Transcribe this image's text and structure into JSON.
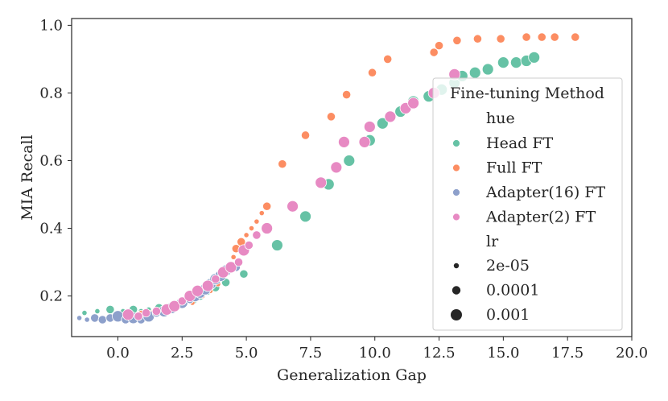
{
  "chart_data": {
    "type": "scatter",
    "title": "",
    "xlabel": "Generalization Gap",
    "ylabel": "MIA Recall",
    "xlim": [
      -1.8,
      20.0
    ],
    "ylim": [
      0.08,
      1.02
    ],
    "xticks": [
      0.0,
      2.5,
      5.0,
      7.5,
      10.0,
      12.5,
      15.0,
      17.5,
      20.0
    ],
    "xtick_labels": [
      "0.0",
      "2.5",
      "5.0",
      "7.5",
      "10.0",
      "12.5",
      "15.0",
      "17.5",
      "20.0"
    ],
    "yticks": [
      0.2,
      0.4,
      0.6,
      0.8,
      1.0
    ],
    "ytick_labels": [
      "0.2",
      "0.4",
      "0.6",
      "0.8",
      "1.0"
    ],
    "grid": false,
    "legend": {
      "title": "Fine-tuning Method",
      "placement": "right",
      "hue_header": "hue",
      "size_header": "lr",
      "size_entries": [
        {
          "label": "2e-05",
          "lr_index": 0
        },
        {
          "label": "0.0001",
          "lr_index": 1
        },
        {
          "label": "0.001",
          "lr_index": 2
        }
      ]
    },
    "series": [
      {
        "name": "Head FT",
        "color": "#66c2a5",
        "points": [
          [
            -1.3,
            0.15,
            0
          ],
          [
            -0.8,
            0.155,
            0
          ],
          [
            -0.3,
            0.16,
            1
          ],
          [
            0.2,
            0.155,
            0
          ],
          [
            0.6,
            0.16,
            1
          ],
          [
            0.9,
            0.155,
            0
          ],
          [
            1.2,
            0.16,
            0
          ],
          [
            1.6,
            0.165,
            1
          ],
          [
            2.0,
            0.165,
            0
          ],
          [
            2.3,
            0.17,
            1
          ],
          [
            2.6,
            0.175,
            0
          ],
          [
            2.9,
            0.185,
            1
          ],
          [
            3.2,
            0.2,
            1
          ],
          [
            3.5,
            0.21,
            0
          ],
          [
            3.8,
            0.225,
            1
          ],
          [
            4.2,
            0.24,
            1
          ],
          [
            4.9,
            0.265,
            1
          ],
          [
            6.2,
            0.35,
            2
          ],
          [
            7.3,
            0.435,
            2
          ],
          [
            8.2,
            0.53,
            2
          ],
          [
            9.0,
            0.6,
            2
          ],
          [
            9.8,
            0.66,
            2
          ],
          [
            10.3,
            0.71,
            2
          ],
          [
            11.0,
            0.745,
            2
          ],
          [
            11.5,
            0.775,
            2
          ],
          [
            12.1,
            0.79,
            2
          ],
          [
            12.6,
            0.81,
            2
          ],
          [
            13.1,
            0.83,
            2
          ],
          [
            13.4,
            0.85,
            2
          ],
          [
            13.9,
            0.86,
            2
          ],
          [
            14.4,
            0.87,
            2
          ],
          [
            15.0,
            0.89,
            2
          ],
          [
            15.5,
            0.89,
            2
          ],
          [
            15.9,
            0.895,
            2
          ],
          [
            16.2,
            0.905,
            2
          ]
        ]
      },
      {
        "name": "Full FT",
        "color": "#fc8d62",
        "points": [
          [
            0.5,
            0.15,
            0
          ],
          [
            0.9,
            0.15,
            0
          ],
          [
            1.3,
            0.15,
            0
          ],
          [
            1.7,
            0.155,
            0
          ],
          [
            2.1,
            0.16,
            0
          ],
          [
            2.5,
            0.17,
            0
          ],
          [
            2.9,
            0.18,
            0
          ],
          [
            3.3,
            0.2,
            0
          ],
          [
            3.6,
            0.215,
            0
          ],
          [
            3.9,
            0.235,
            0
          ],
          [
            4.1,
            0.265,
            0
          ],
          [
            4.3,
            0.29,
            0
          ],
          [
            4.5,
            0.315,
            0
          ],
          [
            4.6,
            0.34,
            1
          ],
          [
            4.8,
            0.36,
            1
          ],
          [
            5.0,
            0.38,
            0
          ],
          [
            5.2,
            0.4,
            0
          ],
          [
            5.4,
            0.42,
            0
          ],
          [
            5.6,
            0.445,
            0
          ],
          [
            5.8,
            0.465,
            1
          ],
          [
            6.4,
            0.59,
            1
          ],
          [
            7.3,
            0.675,
            1
          ],
          [
            8.3,
            0.73,
            1
          ],
          [
            8.9,
            0.795,
            1
          ],
          [
            9.9,
            0.86,
            1
          ],
          [
            10.5,
            0.9,
            1
          ],
          [
            12.3,
            0.92,
            1
          ],
          [
            12.5,
            0.94,
            1
          ],
          [
            13.2,
            0.955,
            1
          ],
          [
            14.0,
            0.96,
            1
          ],
          [
            14.9,
            0.96,
            1
          ],
          [
            15.9,
            0.965,
            1
          ],
          [
            16.5,
            0.965,
            1
          ],
          [
            17.0,
            0.965,
            1
          ],
          [
            17.8,
            0.965,
            1
          ]
        ]
      },
      {
        "name": "Adapter(16) FT",
        "color": "#8da0cb",
        "points": [
          [
            -1.5,
            0.135,
            0
          ],
          [
            -1.2,
            0.13,
            0
          ],
          [
            -0.9,
            0.135,
            1
          ],
          [
            -0.6,
            0.13,
            1
          ],
          [
            -0.3,
            0.135,
            1
          ],
          [
            0.0,
            0.14,
            2
          ],
          [
            0.3,
            0.13,
            1
          ],
          [
            0.6,
            0.135,
            2
          ],
          [
            0.9,
            0.13,
            1
          ],
          [
            1.2,
            0.14,
            2
          ],
          [
            1.5,
            0.15,
            1
          ],
          [
            1.8,
            0.155,
            2
          ],
          [
            2.1,
            0.165,
            2
          ],
          [
            2.3,
            0.17,
            1
          ],
          [
            2.5,
            0.18,
            2
          ],
          [
            2.8,
            0.19,
            1
          ],
          [
            3.0,
            0.2,
            2
          ],
          [
            3.2,
            0.21,
            2
          ],
          [
            3.4,
            0.22,
            2
          ],
          [
            3.6,
            0.235,
            2
          ],
          [
            3.8,
            0.25,
            2
          ],
          [
            4.0,
            0.26,
            2
          ],
          [
            4.2,
            0.275,
            2
          ],
          [
            4.4,
            0.28,
            1
          ],
          [
            4.6,
            0.285,
            1
          ]
        ]
      },
      {
        "name": "Adapter(2) FT",
        "color": "#e78ac3",
        "points": [
          [
            0.4,
            0.145,
            2
          ],
          [
            0.8,
            0.14,
            1
          ],
          [
            1.1,
            0.15,
            1
          ],
          [
            1.5,
            0.155,
            1
          ],
          [
            1.9,
            0.16,
            2
          ],
          [
            2.2,
            0.17,
            2
          ],
          [
            2.5,
            0.185,
            1
          ],
          [
            2.8,
            0.2,
            2
          ],
          [
            3.1,
            0.215,
            2
          ],
          [
            3.5,
            0.23,
            2
          ],
          [
            3.8,
            0.25,
            1
          ],
          [
            4.1,
            0.27,
            2
          ],
          [
            4.4,
            0.285,
            2
          ],
          [
            4.7,
            0.3,
            1
          ],
          [
            4.9,
            0.335,
            2
          ],
          [
            5.1,
            0.35,
            1
          ],
          [
            5.4,
            0.38,
            1
          ],
          [
            5.8,
            0.4,
            2
          ],
          [
            6.8,
            0.465,
            2
          ],
          [
            7.9,
            0.535,
            2
          ],
          [
            8.5,
            0.58,
            2
          ],
          [
            8.8,
            0.655,
            2
          ],
          [
            9.6,
            0.655,
            2
          ],
          [
            9.8,
            0.7,
            2
          ],
          [
            10.6,
            0.73,
            2
          ],
          [
            11.2,
            0.755,
            2
          ],
          [
            11.5,
            0.77,
            2
          ],
          [
            12.3,
            0.8,
            2
          ],
          [
            13.1,
            0.855,
            2
          ]
        ]
      }
    ]
  }
}
